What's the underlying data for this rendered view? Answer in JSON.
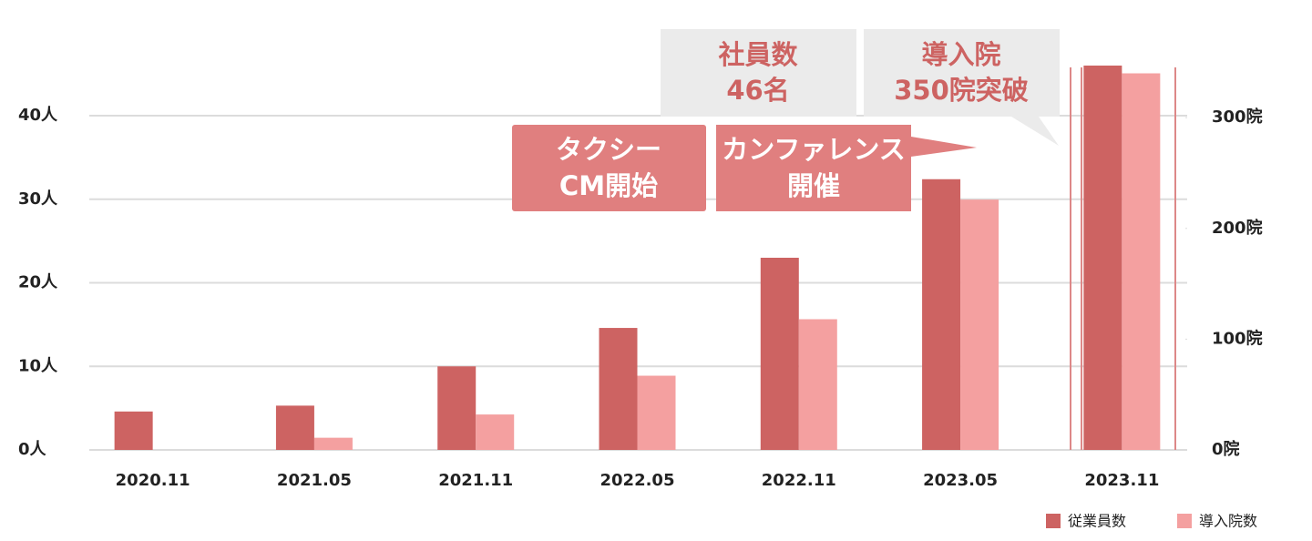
{
  "chart_data": {
    "type": "bar",
    "categories": [
      "2020.11",
      "2021.05",
      "2021.11",
      "2022.05",
      "2022.11",
      "2023.05",
      "2023.11"
    ],
    "series": [
      {
        "name": "従業員数",
        "color": "#cd6362",
        "values": [
          4.6,
          5.3,
          10,
          14.6,
          23,
          32.4,
          46
        ]
      },
      {
        "name": "導入院数",
        "color": "#f4a0a0",
        "axis": "y2",
        "values": [
          0,
          11,
          32,
          67,
          118,
          226,
          340
        ]
      }
    ],
    "ylim": [
      0,
      46
    ],
    "yticks": [
      {
        "value": 0,
        "label": "0人"
      },
      {
        "value": 10,
        "label": "10人"
      },
      {
        "value": 20,
        "label": "20人"
      },
      {
        "value": 30,
        "label": "30人"
      },
      {
        "value": 40,
        "label": "40人"
      }
    ],
    "y2lim": [
      0,
      347
    ],
    "y2ticks": [
      {
        "value": 0,
        "label": "0院"
      },
      {
        "value": 100,
        "label": "100院"
      },
      {
        "value": 200,
        "label": "200院"
      },
      {
        "value": 300,
        "label": "300院"
      }
    ],
    "grid": true,
    "legend": "bottom-right",
    "annotations": [
      [
        "タクシー",
        "CM開始"
      ],
      [
        "カンファレンス",
        "開催"
      ],
      [
        "社員数",
        "46名"
      ],
      [
        "導入院",
        "350院突破"
      ]
    ]
  }
}
